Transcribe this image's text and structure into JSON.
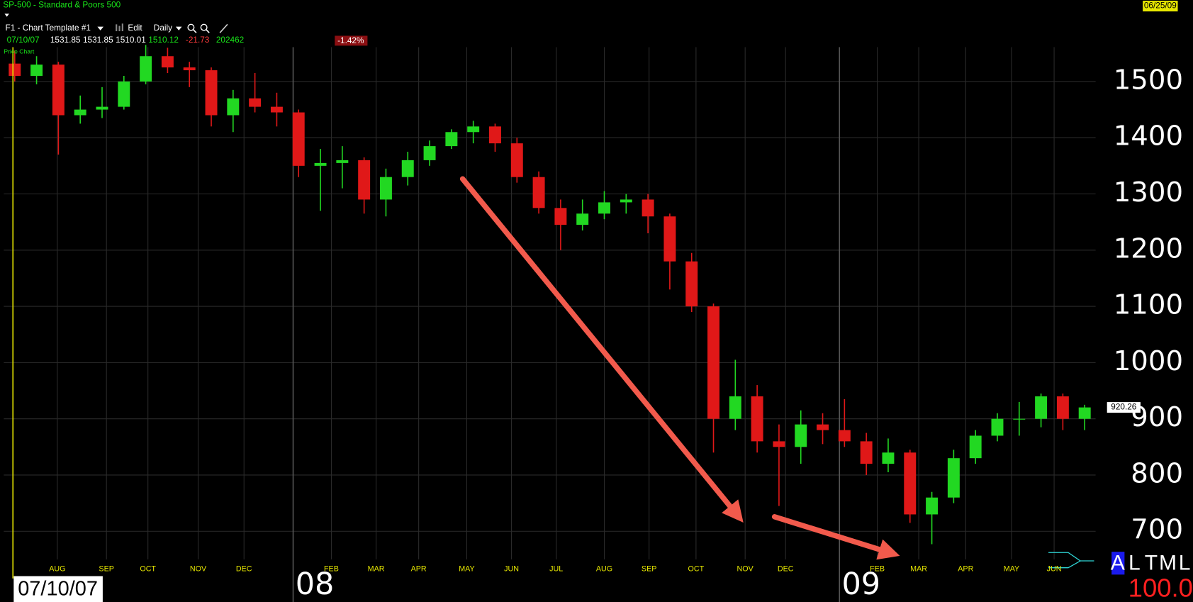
{
  "header": {
    "symbol": "SP-500 - Standard & Poors 500",
    "date": "06/25/09",
    "template": "F1 - Chart Template #1",
    "edit": "Edit",
    "period": "Daily",
    "quote": {
      "date": "07/10/07",
      "open": 1531.85,
      "high": 1531.85,
      "low": 1510.01,
      "close": 1510.12,
      "change": -21.73,
      "volume": 202462,
      "change_pct": "-1.42%"
    },
    "panel": "Price Chart",
    "cursor_date": "07/10/07",
    "indicators": {
      "letters": [
        "A",
        "L",
        "T",
        "M",
        "L"
      ],
      "value": "100.0"
    }
  },
  "chart_data": {
    "type": "candlestick",
    "x": [
      0,
      10,
      20,
      30,
      40,
      50,
      60,
      70,
      80,
      90,
      100,
      110,
      120,
      130,
      140,
      150,
      160,
      170,
      180,
      190,
      200,
      210,
      220,
      230,
      240,
      250,
      260,
      270,
      280,
      290,
      300,
      310,
      320,
      330,
      340,
      350,
      360,
      370,
      380,
      390,
      400,
      410,
      420,
      430,
      440,
      450,
      460,
      470,
      480,
      490
    ],
    "open": [
      1531.85,
      1510,
      1530,
      1440,
      1450,
      1455,
      1500,
      1545,
      1525,
      1520,
      1440,
      1470,
      1455,
      1445,
      1350,
      1355,
      1360,
      1290,
      1330,
      1360,
      1385,
      1410,
      1420,
      1390,
      1330,
      1275,
      1245,
      1265,
      1285,
      1290,
      1260,
      1180,
      1100,
      900,
      940,
      860,
      850,
      890,
      880,
      860,
      820,
      840,
      730,
      760,
      830,
      870,
      900,
      900,
      940,
      900
    ],
    "high": [
      1555,
      1545,
      1535,
      1475,
      1490,
      1510,
      1565,
      1560,
      1535,
      1525,
      1485,
      1515,
      1480,
      1450,
      1380,
      1385,
      1365,
      1345,
      1375,
      1395,
      1415,
      1430,
      1425,
      1400,
      1340,
      1290,
      1290,
      1305,
      1300,
      1300,
      1265,
      1195,
      1105,
      1005,
      960,
      890,
      915,
      910,
      935,
      875,
      865,
      845,
      770,
      845,
      880,
      910,
      930,
      945,
      945,
      925
    ],
    "low": [
      1500,
      1495,
      1370,
      1425,
      1435,
      1450,
      1495,
      1515,
      1490,
      1420,
      1410,
      1445,
      1420,
      1330,
      1270,
      1310,
      1265,
      1260,
      1315,
      1350,
      1380,
      1390,
      1375,
      1320,
      1265,
      1200,
      1235,
      1255,
      1265,
      1230,
      1130,
      1090,
      840,
      880,
      840,
      745,
      820,
      855,
      850,
      800,
      805,
      715,
      677,
      750,
      820,
      860,
      870,
      885,
      880,
      880
    ],
    "close": [
      1510,
      1530,
      1440,
      1450,
      1455,
      1500,
      1545,
      1525,
      1520,
      1440,
      1470,
      1455,
      1445,
      1350,
      1355,
      1360,
      1290,
      1330,
      1360,
      1385,
      1410,
      1420,
      1390,
      1330,
      1275,
      1245,
      1265,
      1285,
      1290,
      1260,
      1180,
      1100,
      900,
      940,
      860,
      850,
      890,
      880,
      860,
      820,
      840,
      730,
      760,
      830,
      870,
      900,
      900,
      940,
      900,
      920.26
    ],
    "up_color": "#22d822",
    "down_color": "#e01818",
    "xlim": [
      -5,
      495
    ],
    "ylim": [
      650,
      1561
    ],
    "yticks": [
      700,
      800,
      900,
      1000,
      1100,
      1200,
      1300,
      1400,
      1500
    ],
    "xticks": [
      {
        "value": 19.5,
        "label": "AUG"
      },
      {
        "value": 42,
        "label": "SEP"
      },
      {
        "value": 61,
        "label": "OCT"
      },
      {
        "value": 84,
        "label": "NOV"
      },
      {
        "value": 105,
        "label": "DEC"
      },
      {
        "value": 127.5,
        "label": "08"
      },
      {
        "value": 145,
        "label": "FEB"
      },
      {
        "value": 165.5,
        "label": "MAR"
      },
      {
        "value": 185,
        "label": "APR"
      },
      {
        "value": 207,
        "label": "MAY"
      },
      {
        "value": 227.5,
        "label": "JUN"
      },
      {
        "value": 248,
        "label": "JUL"
      },
      {
        "value": 270,
        "label": "AUG"
      },
      {
        "value": 290.5,
        "label": "SEP"
      },
      {
        "value": 312,
        "label": "OCT"
      },
      {
        "value": 334.5,
        "label": "NOV"
      },
      {
        "value": 353,
        "label": "DEC"
      },
      {
        "value": 377.7,
        "label": "09"
      },
      {
        "value": 395,
        "label": "FEB"
      },
      {
        "value": 414,
        "label": "MAR"
      },
      {
        "value": 435.5,
        "label": "APR"
      },
      {
        "value": 456.5,
        "label": "MAY"
      },
      {
        "value": 476,
        "label": "JUN"
      }
    ],
    "grid": true
  }
}
